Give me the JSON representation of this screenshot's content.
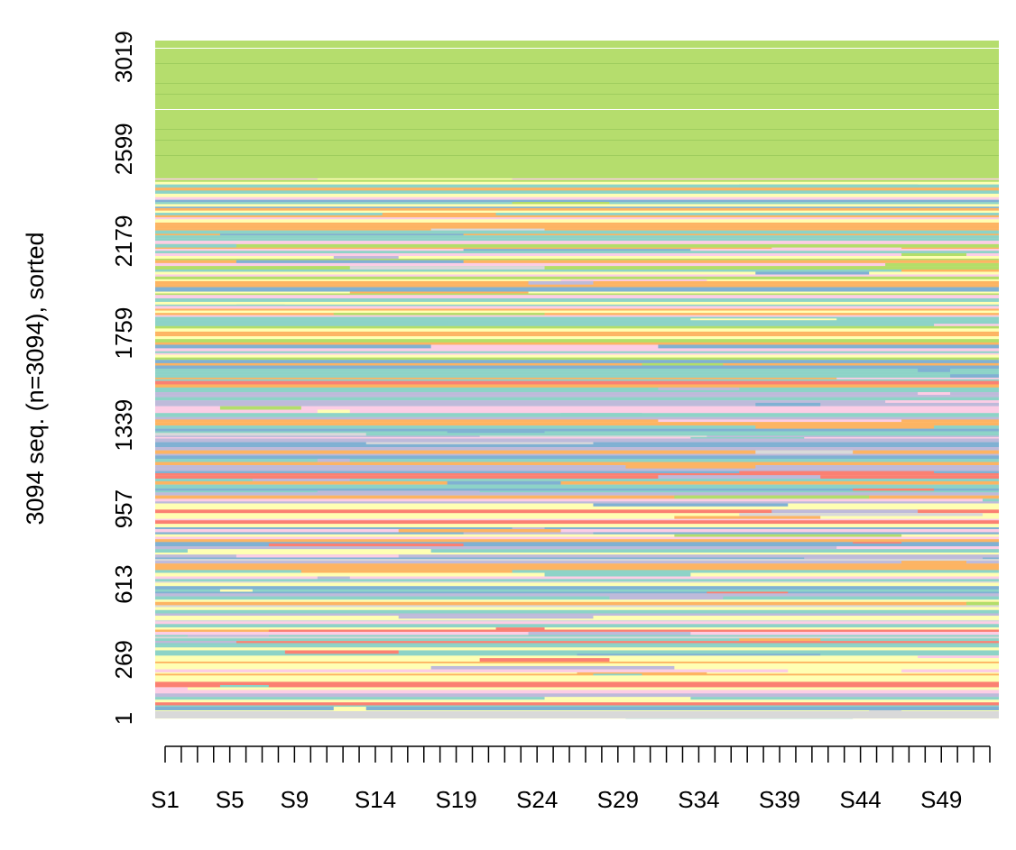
{
  "chart_data": {
    "type": "heatmap",
    "subtype": "sequence index plot",
    "title": "",
    "ylabel": "3094 seq. (n=3094), sorted",
    "xlabel": "",
    "n_sequences": 3094,
    "x_positions": 52,
    "x_tick_labels": [
      "S1",
      "S5",
      "S9",
      "S14",
      "S19",
      "S24",
      "S29",
      "S34",
      "S39",
      "S44",
      "S49"
    ],
    "x_tick_positions": [
      1,
      5,
      9,
      14,
      19,
      24,
      29,
      34,
      39,
      44,
      49
    ],
    "y_tick_labels": [
      "1",
      "269",
      "613",
      "957",
      "1339",
      "1759",
      "2179",
      "2599",
      "3019"
    ],
    "y_tick_values": [
      1,
      269,
      613,
      957,
      1339,
      1759,
      2179,
      2599,
      3019
    ],
    "ylim": [
      1,
      3094
    ],
    "state_colors": [
      "#b5dd6d",
      "#8dd3c7",
      "#80b1d3",
      "#fb8072",
      "#fdb462",
      "#ffffb3",
      "#bebada",
      "#fccde5",
      "#d9d9d9",
      "#b3de69"
    ],
    "dominant_top_state_color": "#b5dd6d",
    "top_block_start_seq": 2465,
    "grid": false,
    "legend": "none"
  }
}
